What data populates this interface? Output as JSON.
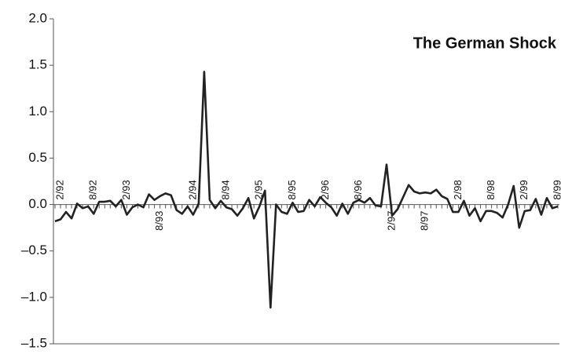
{
  "chart_data": {
    "type": "line",
    "title": "The German Shock",
    "categories": [
      null,
      "2/92",
      null,
      null,
      null,
      null,
      null,
      "8/92",
      null,
      null,
      null,
      null,
      null,
      "2/93",
      null,
      null,
      null,
      null,
      null,
      "8/93",
      null,
      null,
      null,
      null,
      null,
      "2/94",
      null,
      null,
      null,
      null,
      null,
      "8/94",
      null,
      null,
      null,
      null,
      null,
      "2/95",
      null,
      null,
      null,
      null,
      null,
      "8/95",
      null,
      null,
      null,
      null,
      null,
      "2/96",
      null,
      null,
      null,
      null,
      null,
      "8/96",
      null,
      null,
      null,
      null,
      null,
      "2/97",
      null,
      null,
      null,
      null,
      null,
      "8/97",
      null,
      null,
      null,
      null,
      null,
      "2/98",
      null,
      null,
      null,
      null,
      null,
      "8/98",
      null,
      null,
      null,
      null,
      null,
      "2/99",
      null,
      null,
      null,
      null,
      null,
      "8/99"
    ],
    "values": [
      -0.18,
      -0.16,
      -0.08,
      -0.15,
      0.01,
      -0.04,
      -0.02,
      -0.1,
      0.03,
      0.03,
      0.04,
      -0.02,
      0.05,
      -0.11,
      -0.03,
      0.0,
      -0.03,
      0.11,
      0.05,
      0.09,
      0.12,
      0.1,
      -0.06,
      -0.1,
      -0.02,
      -0.11,
      0.01,
      1.43,
      0.05,
      -0.04,
      0.04,
      -0.03,
      -0.05,
      -0.12,
      -0.04,
      0.07,
      -0.15,
      -0.02,
      0.15,
      -1.11,
      0.0,
      -0.08,
      -0.1,
      0.02,
      -0.08,
      -0.07,
      0.05,
      -0.02,
      0.08,
      0.02,
      -0.03,
      -0.12,
      0.01,
      -0.1,
      0.02,
      0.05,
      0.02,
      0.07,
      -0.01,
      -0.02,
      0.43,
      -0.12,
      -0.05,
      0.08,
      0.21,
      0.14,
      0.12,
      0.13,
      0.12,
      0.16,
      0.09,
      0.06,
      -0.08,
      -0.08,
      0.04,
      -0.12,
      -0.04,
      -0.18,
      -0.07,
      -0.07,
      -0.09,
      -0.14,
      0.0,
      0.2,
      -0.25,
      -0.07,
      -0.06,
      0.06,
      -0.11,
      0.07,
      -0.04,
      -0.02
    ],
    "color": "#222222",
    "ylim": [
      -1.5,
      2.0
    ],
    "yticks": [
      {
        "value": -1.5,
        "label": "–1.5"
      },
      {
        "value": -1.0,
        "label": "–1.0"
      },
      {
        "value": -0.5,
        "label": "–0.5"
      },
      {
        "value": 0,
        "label": "0.0"
      },
      {
        "value": 0.5,
        "label": "0.5"
      },
      {
        "value": 1.0,
        "label": "1.0"
      },
      {
        "value": 1.5,
        "label": "1.5"
      },
      {
        "value": 2.0,
        "label": "2.0"
      }
    ],
    "grid": false
  }
}
